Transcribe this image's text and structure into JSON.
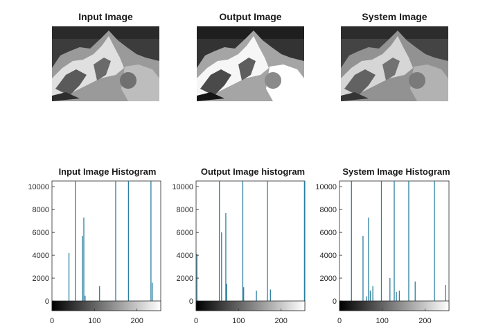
{
  "images": [
    {
      "title": "Input Image"
    },
    {
      "title": "Output Image"
    },
    {
      "title": "System Image"
    }
  ],
  "colors": {
    "stem": "#2a7f9e",
    "axis": "#262626",
    "title": "#1a1a1a"
  },
  "chart_data": [
    {
      "type": "bar",
      "title": "Input Image Histogram",
      "xlim": [
        0,
        256
      ],
      "ylim": [
        0,
        10500
      ],
      "xticks": [
        0,
        100,
        200
      ],
      "yticks": [
        0,
        2000,
        4000,
        6000,
        8000,
        10000
      ],
      "colorbar": "grayscale",
      "x": [
        40,
        55,
        72,
        75,
        78,
        112,
        150,
        180,
        233,
        236
      ],
      "y": [
        4200,
        10500,
        5700,
        7300,
        450,
        1300,
        10500,
        10500,
        10500,
        1600
      ]
    },
    {
      "type": "bar",
      "title": "Output Image histogram",
      "xlim": [
        0,
        256
      ],
      "ylim": [
        0,
        10500
      ],
      "xticks": [
        0,
        100,
        200
      ],
      "yticks": [
        0,
        2000,
        4000,
        6000,
        8000,
        10000
      ],
      "colorbar": "grayscale",
      "x": [
        2,
        55,
        60,
        70,
        72,
        110,
        112,
        142,
        168,
        175,
        255
      ],
      "y": [
        4100,
        10500,
        6000,
        7700,
        1500,
        10500,
        1200,
        900,
        10500,
        1000,
        10500
      ]
    },
    {
      "type": "bar",
      "title": "System Image Histogram",
      "xlim": [
        0,
        256
      ],
      "ylim": [
        0,
        10500
      ],
      "xticks": [
        0,
        100,
        200
      ],
      "yticks": [
        0,
        2000,
        4000,
        6000,
        8000,
        10000
      ],
      "colorbar": "grayscale",
      "x": [
        28,
        55,
        63,
        68,
        72,
        78,
        98,
        118,
        128,
        133,
        140,
        162,
        177,
        222,
        248
      ],
      "y": [
        10500,
        5700,
        400,
        7300,
        900,
        1300,
        10500,
        2000,
        10500,
        800,
        900,
        10500,
        1700,
        10500,
        1400
      ]
    }
  ]
}
